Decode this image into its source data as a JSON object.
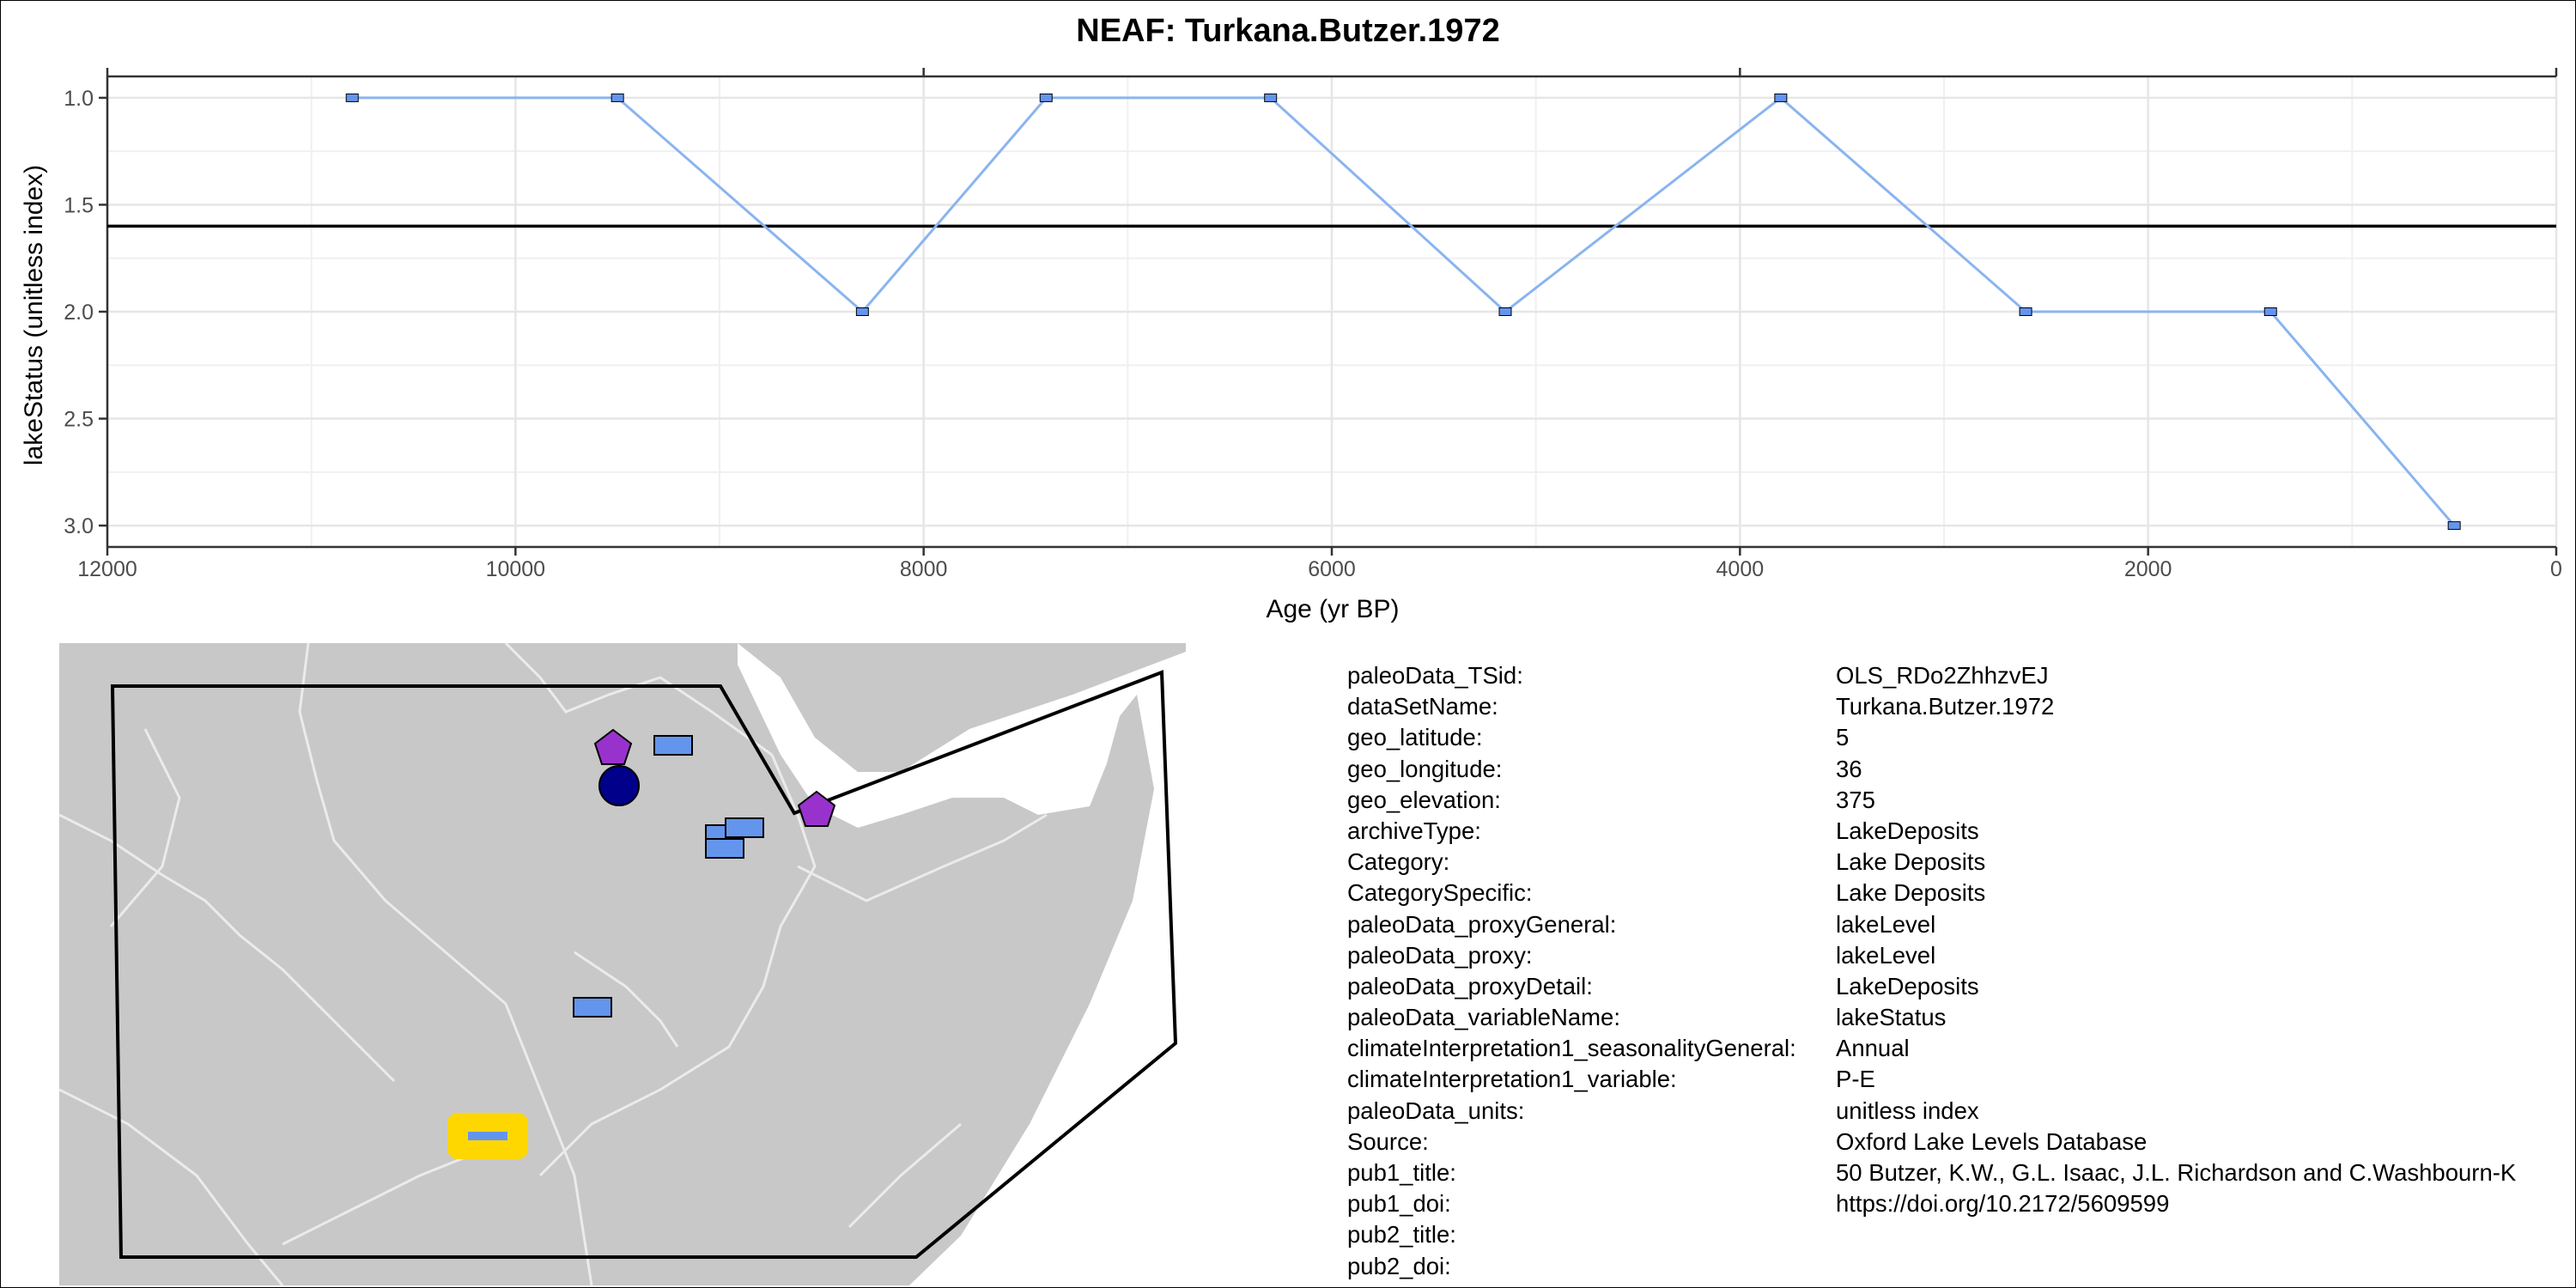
{
  "chart_data": {
    "type": "line",
    "title": "NEAF: Turkana.Butzer.1972",
    "xlabel": "Age (yr BP)",
    "ylabel": "lakeStatus (unitless index)",
    "xlim": [
      12000,
      0
    ],
    "ylim": [
      3.1,
      0.9
    ],
    "x_reversed": true,
    "y_reversed": true,
    "x_ticks": [
      12000,
      10000,
      8000,
      6000,
      4000,
      2000,
      0
    ],
    "x_tick_labels": [
      "12000",
      "10000",
      "8000",
      "6000",
      "4000",
      "2000",
      "0"
    ],
    "y_ticks": [
      1.0,
      1.5,
      2.0,
      2.5,
      3.0
    ],
    "y_tick_labels": [
      "1.0",
      "1.5",
      "2.0",
      "2.5",
      "3.0"
    ],
    "reference_line": 1.6,
    "grid": true,
    "line_color": "#8ab4f0",
    "marker_color": "#6495ed",
    "reference_color": "#000000",
    "series": [
      {
        "x": [
          10800,
          9500,
          8300,
          7400,
          6300,
          5150,
          3800,
          2600,
          1400,
          500
        ],
        "y": [
          1,
          1,
          2,
          1,
          1,
          2,
          1,
          2,
          2,
          3
        ]
      }
    ]
  },
  "map": {
    "land_color": "#c8c8c8",
    "sea_color": "#ffffff",
    "boundary_color": "#000000",
    "marker_square_color": "#6495ed",
    "marker_pentagon_color": "#9932cc",
    "marker_circle_color": "#00008b",
    "highlight_color": "#ffd700"
  },
  "info": [
    {
      "key": "paleoData_TSid:",
      "value": "OLS_RDo2ZhhzvEJ"
    },
    {
      "key": "dataSetName:",
      "value": "Turkana.Butzer.1972"
    },
    {
      "key": "geo_latitude:",
      "value": "5"
    },
    {
      "key": "geo_longitude:",
      "value": "36"
    },
    {
      "key": "geo_elevation:",
      "value": "375"
    },
    {
      "key": "archiveType:",
      "value": "LakeDeposits"
    },
    {
      "key": "Category:",
      "value": "Lake Deposits"
    },
    {
      "key": "CategorySpecific:",
      "value": "Lake Deposits"
    },
    {
      "key": "paleoData_proxyGeneral:",
      "value": "lakeLevel"
    },
    {
      "key": "paleoData_proxy:",
      "value": "lakeLevel"
    },
    {
      "key": "paleoData_proxyDetail:",
      "value": "LakeDeposits"
    },
    {
      "key": "paleoData_variableName:",
      "value": "lakeStatus"
    },
    {
      "key": "climateInterpretation1_seasonalityGeneral:",
      "value": "Annual"
    },
    {
      "key": "climateInterpretation1_variable:",
      "value": "P-E"
    },
    {
      "key": "paleoData_units:",
      "value": "unitless index"
    },
    {
      "key": "Source:",
      "value": "Oxford Lake Levels Database"
    },
    {
      "key": "pub1_title:",
      "value": "50  Butzer, K.W., G.L. Isaac, J.L. Richardson and C.Washbourn-K"
    },
    {
      "key": "pub1_doi:",
      "value": "https://doi.org/10.2172/5609599"
    },
    {
      "key": "pub2_title:",
      "value": ""
    },
    {
      "key": "pub2_doi:",
      "value": ""
    }
  ]
}
